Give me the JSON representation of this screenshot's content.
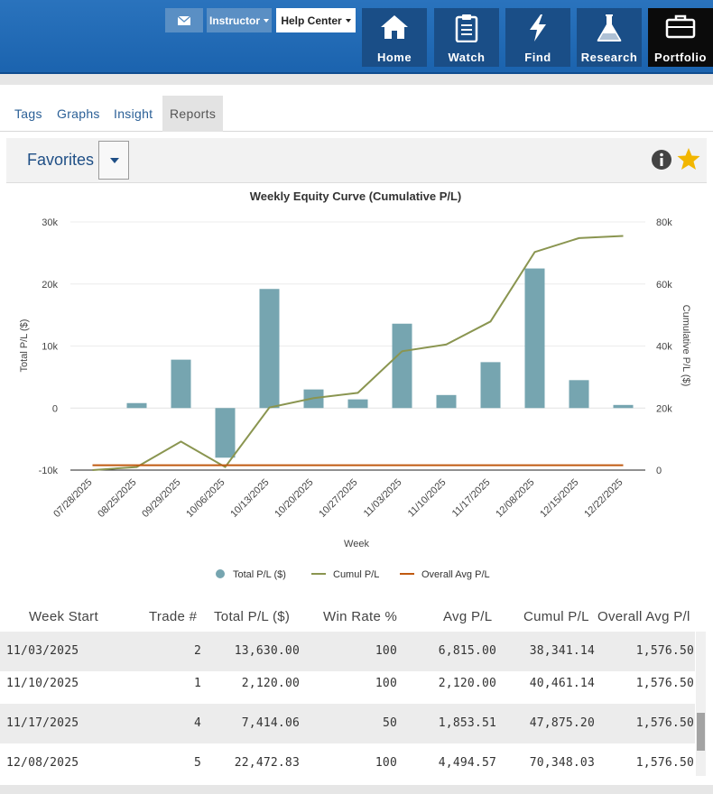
{
  "header": {
    "instructor_label": "Instructor",
    "help_label": "Help Center",
    "nav": [
      {
        "label": "Home",
        "icon": "home-icon"
      },
      {
        "label": "Watch",
        "icon": "clipboard-icon"
      },
      {
        "label": "Find",
        "icon": "lightning-icon"
      },
      {
        "label": "Research",
        "icon": "flask-icon"
      },
      {
        "label": "Portfolio",
        "icon": "briefcase-icon"
      }
    ]
  },
  "tabs": [
    "Tags",
    "Graphs",
    "Insight",
    "Reports"
  ],
  "active_tab": "Reports",
  "favorites": {
    "title": "Favorites"
  },
  "chart_data": {
    "type": "bar",
    "title": "Weekly Equity Curve (Cumulative P/L)",
    "xlabel": "Week",
    "ylabel_left": "Total P/L ($)",
    "ylabel_right": "Cumulative P/L ($)",
    "categories": [
      "07/28/2025",
      "08/25/2025",
      "09/29/2025",
      "10/06/2025",
      "10/13/2025",
      "10/20/2025",
      "10/27/2025",
      "11/03/2025",
      "11/10/2025",
      "11/17/2025",
      "12/08/2025",
      "12/15/2025",
      "12/22/2025"
    ],
    "y_left": {
      "min": -10000,
      "max": 30000,
      "ticks": [
        -10000,
        0,
        10000,
        20000,
        30000
      ],
      "tick_labels": [
        "-10k",
        "0",
        "10k",
        "20k",
        "30k"
      ]
    },
    "y_right": {
      "min": 0,
      "max": 80000,
      "ticks": [
        0,
        20000,
        40000,
        60000,
        80000
      ],
      "tick_labels": [
        "0",
        "20k",
        "40k",
        "60k",
        "80k"
      ]
    },
    "grid": true,
    "legend_position": "bottom",
    "series": [
      {
        "name": "Total P/L ($)",
        "type": "bar",
        "axis": "left",
        "color": "#76a5b0",
        "values": [
          0,
          800,
          7800,
          -8000,
          19200,
          3000,
          1400,
          13600,
          2100,
          7400,
          22500,
          4500,
          500
        ]
      },
      {
        "name": "Cumul P/L",
        "type": "line",
        "axis": "right",
        "color": "#8a9550",
        "values": [
          0,
          1000,
          9200,
          1000,
          20200,
          23200,
          24900,
          38300,
          40500,
          47900,
          70300,
          74800,
          75500
        ]
      },
      {
        "name": "Overall Avg P/L",
        "type": "line",
        "axis": "right",
        "color": "#c05a10",
        "values": [
          1576.5,
          1576.5,
          1576.5,
          1576.5,
          1576.5,
          1576.5,
          1576.5,
          1576.5,
          1576.5,
          1576.5,
          1576.5,
          1576.5,
          1576.5
        ]
      }
    ]
  },
  "table": {
    "columns": [
      "Week Start",
      "Trade #",
      "Total P/L ($)",
      "Win Rate %",
      "Avg P/L",
      "Cumul P/L",
      "Overall Avg P/l"
    ],
    "rows": [
      [
        "11/03/2025",
        "2",
        "13,630.00",
        "100",
        "6,815.00",
        "38,341.14",
        "1,576.50"
      ],
      [
        "11/10/2025",
        "1",
        "2,120.00",
        "100",
        "2,120.00",
        "40,461.14",
        "1,576.50"
      ],
      [
        "11/17/2025",
        "4",
        "7,414.06",
        "50",
        "1,853.51",
        "47,875.20",
        "1,576.50"
      ],
      [
        "12/08/2025",
        "5",
        "22,472.83",
        "100",
        "4,494.57",
        "70,348.03",
        "1,576.50"
      ]
    ]
  }
}
